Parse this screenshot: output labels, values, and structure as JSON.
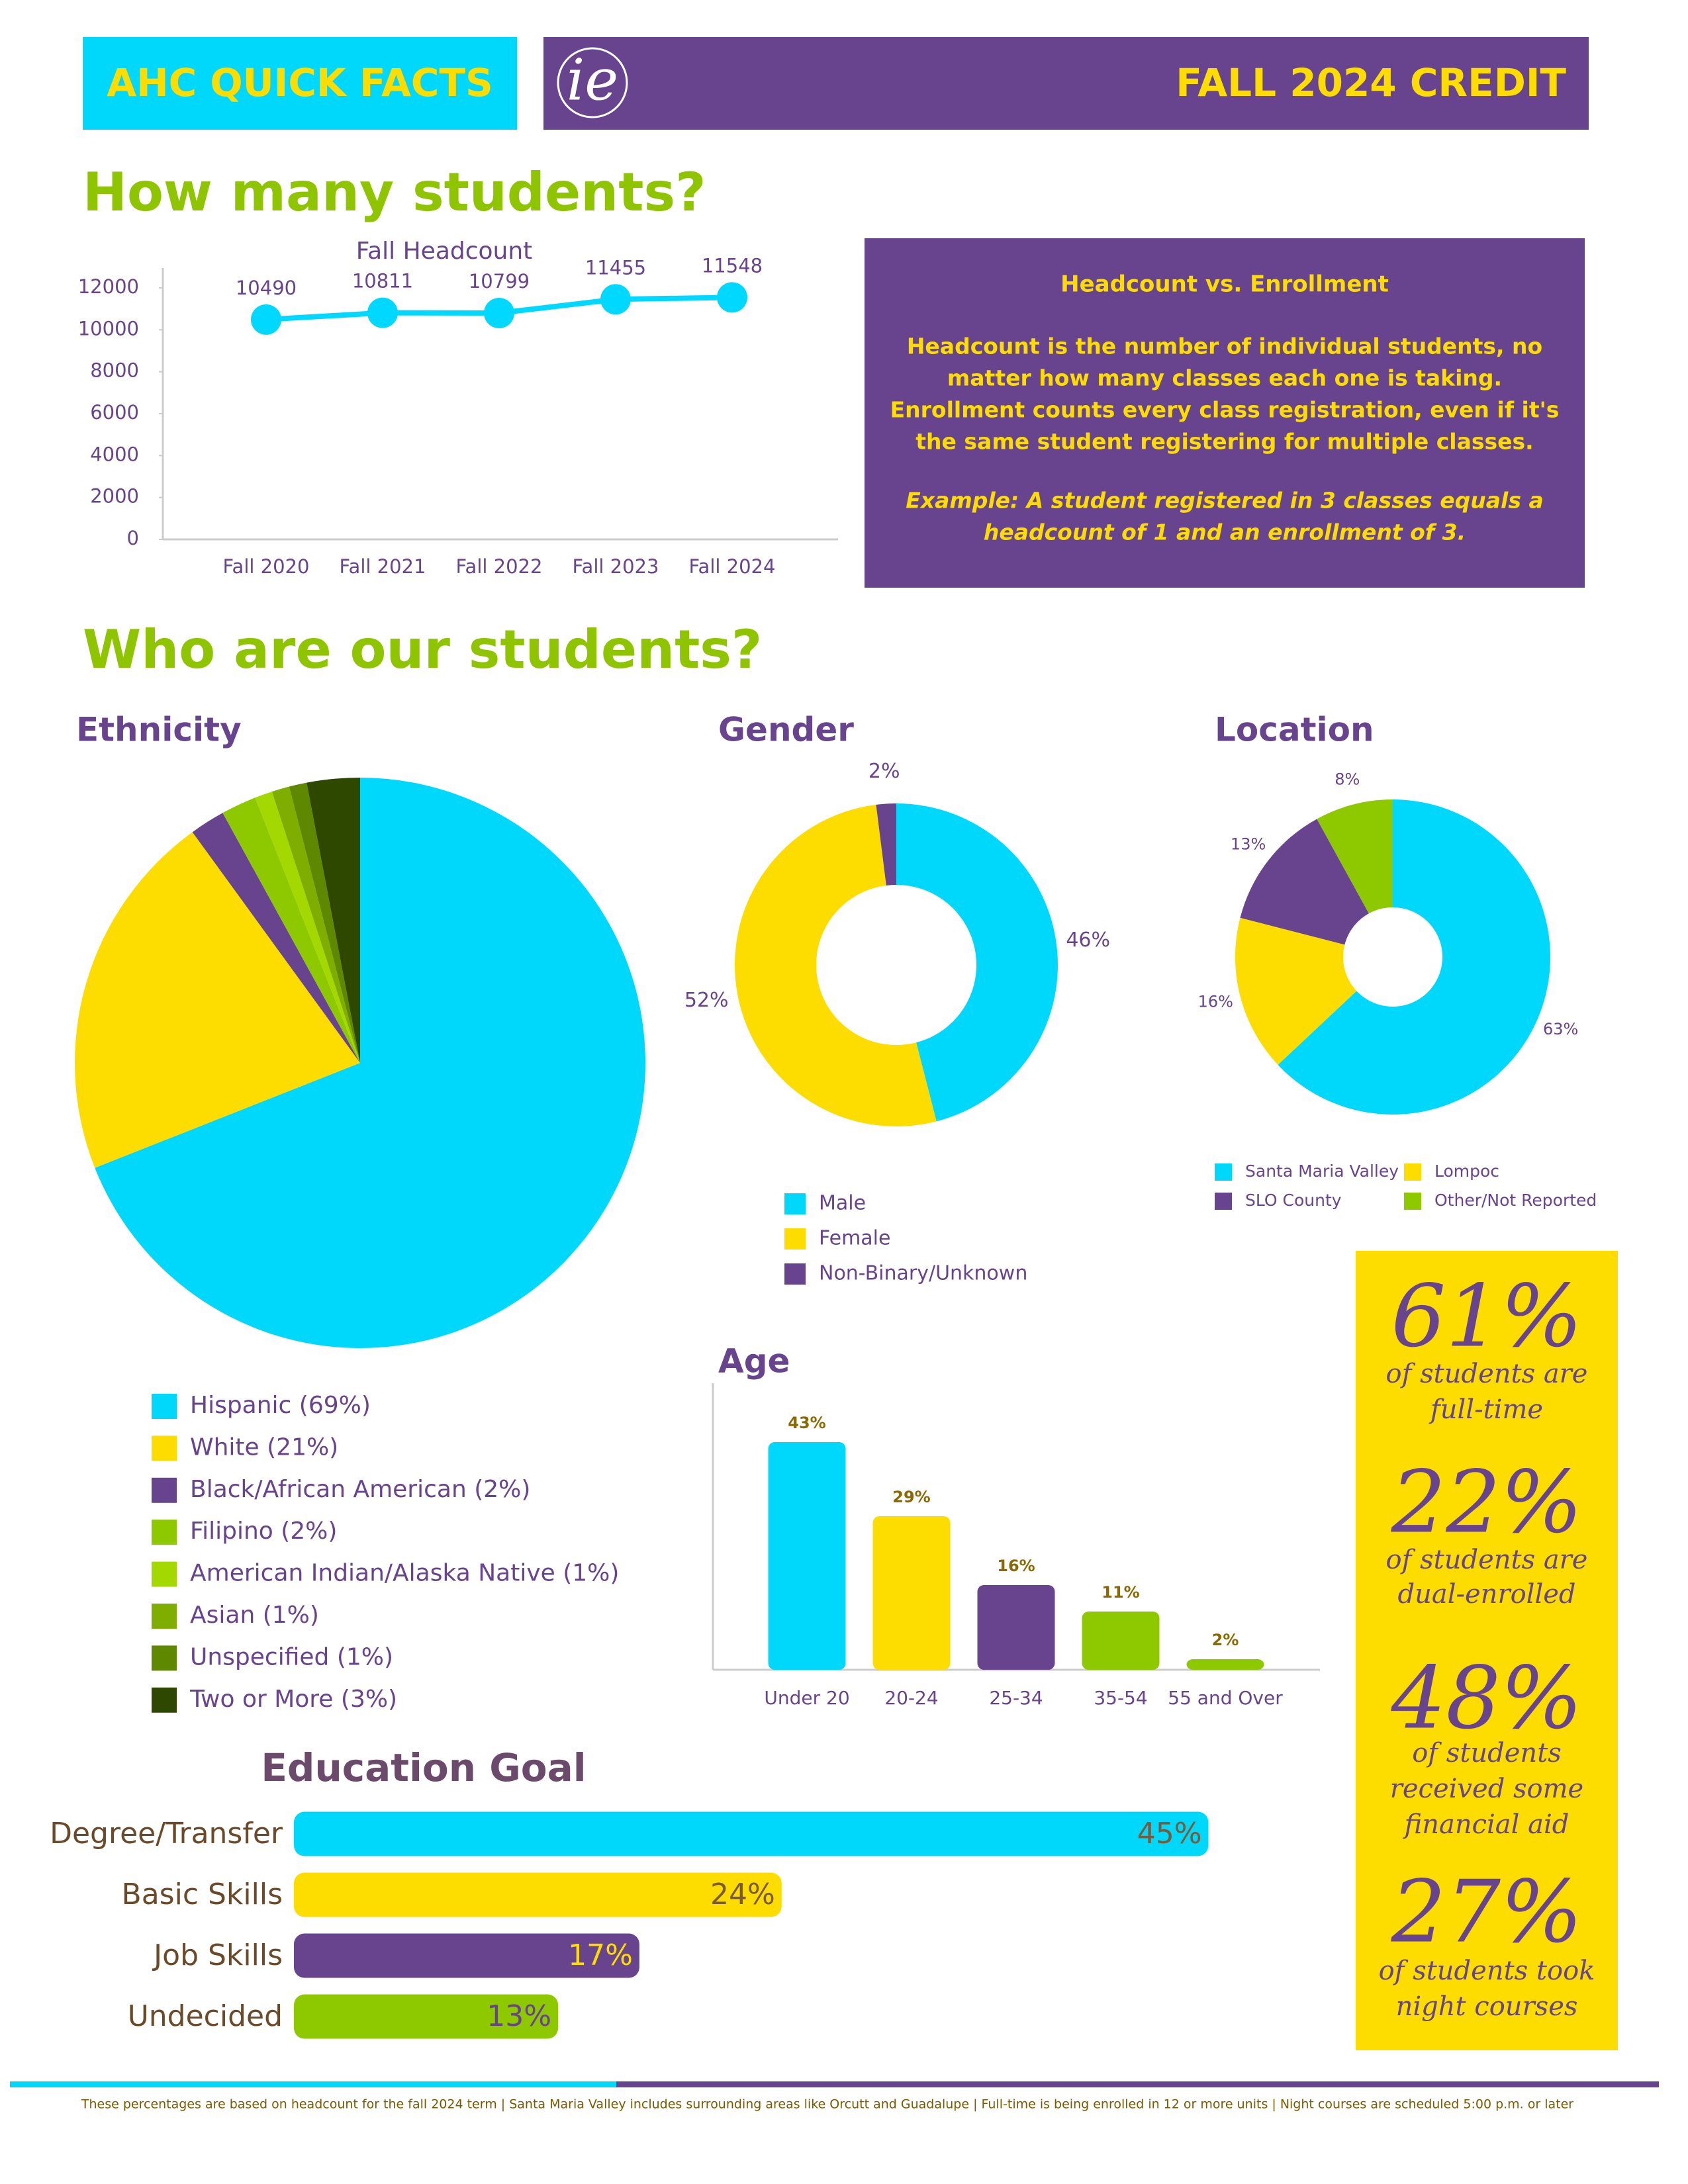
{
  "header": {
    "left": "AHC QUICK FACTS",
    "logo": "ie",
    "right": "FALL 2024 CREDIT"
  },
  "headings": [
    "How many students?",
    "Who are our students?"
  ],
  "info_box": {
    "title": "Headcount vs. Enrollment",
    "body": [
      "Headcount is the number of individual students, no",
      "matter how many classes each one is taking.",
      "Enrollment counts every class registration, even if it's",
      "the same student registering for multiple classes."
    ],
    "example": [
      "Example: A student registered in 3 classes equals a",
      "headcount of 1 and an enrollment of 3."
    ]
  },
  "stats": [
    {
      "value": "61%",
      "lines": [
        "of students are",
        "full-time"
      ]
    },
    {
      "value": "22%",
      "lines": [
        "of students are",
        "dual-enrolled"
      ]
    },
    {
      "value": "48%",
      "lines": [
        "of students",
        "received some",
        "financial aid"
      ]
    },
    {
      "value": "27%",
      "lines": [
        "of students took",
        "night courses"
      ]
    }
  ],
  "footer": "These percentages are based on headcount for the fall 2024 term | Santa Maria Valley includes surrounding areas like Orcutt and  Guadalupe | Full-time is being enrolled in 12 or more units | Night courses are scheduled 5:00 p.m. or later",
  "chart_data": [
    {
      "type": "line",
      "title": "Fall Headcount",
      "categories": [
        "Fall 2020",
        "Fall 2021",
        "Fall 2022",
        "Fall 2023",
        "Fall 2024"
      ],
      "values": [
        10490,
        10811,
        10799,
        11455,
        11548
      ],
      "color": "#00d8ff",
      "ylim": [
        0,
        12000
      ],
      "yticks": [
        0,
        2000,
        4000,
        6000,
        8000,
        10000,
        12000
      ]
    },
    {
      "type": "pie",
      "title": "Ethnicity",
      "categories": [
        "Hispanic (69%)",
        "White (21%)",
        "Black/African American (2%)",
        "Filipino (2%)",
        "American Indian/Alaska Native (1%)",
        "Asian (1%)",
        "Unspecified (1%)",
        "Two or More (3%)"
      ],
      "values": [
        69,
        21,
        2,
        2,
        1,
        1,
        1,
        3
      ],
      "colors": [
        "#00d8fb",
        "#fddc00",
        "#68448e",
        "#8ec900",
        "#a3d900",
        "#7fae00",
        "#5d8800",
        "#2f4800"
      ]
    },
    {
      "type": "donut",
      "title": "Gender",
      "categories": [
        "Male",
        "Female",
        "Non-Binary/Unknown"
      ],
      "values": [
        46,
        52,
        2
      ],
      "value_labels": [
        "46%",
        "52%",
        "2%"
      ],
      "colors": [
        "#00d8fb",
        "#fddc00",
        "#68448e"
      ]
    },
    {
      "type": "donut",
      "title": "Location",
      "categories": [
        "Santa Maria Valley",
        "Lompoc",
        "SLO County",
        "Other/Not Reported"
      ],
      "values": [
        63,
        16,
        13,
        8
      ],
      "value_labels": [
        "63%",
        "16%",
        "13%",
        "8%"
      ],
      "colors": [
        "#00d8fb",
        "#fddc00",
        "#68448e",
        "#8ec900"
      ]
    },
    {
      "type": "bar",
      "title": "Age",
      "categories": [
        "Under 20",
        "20-24",
        "25-34",
        "35-54",
        "55 and Over"
      ],
      "values": [
        43,
        29,
        16,
        11,
        2
      ],
      "value_labels": [
        "43%",
        "29%",
        "16%",
        "11%",
        "2%"
      ],
      "colors": [
        "#00d8fb",
        "#fddc00",
        "#68448e",
        "#8ec900",
        "#8ec900"
      ]
    },
    {
      "type": "hbar",
      "title": "Education Goal",
      "categories": [
        "Degree/Transfer",
        "Basic Skills",
        "Job Skills",
        "Undecided"
      ],
      "values": [
        45,
        24,
        17,
        13
      ],
      "value_labels": [
        "45%",
        "24%",
        "17%",
        "13%"
      ],
      "colors": [
        "#00d8fb",
        "#fddc00",
        "#68448e",
        "#8ec900"
      ],
      "label_colors": [
        "#7a5a3a",
        "#7a5a3a",
        "#fddc00",
        "#68448e"
      ]
    }
  ]
}
